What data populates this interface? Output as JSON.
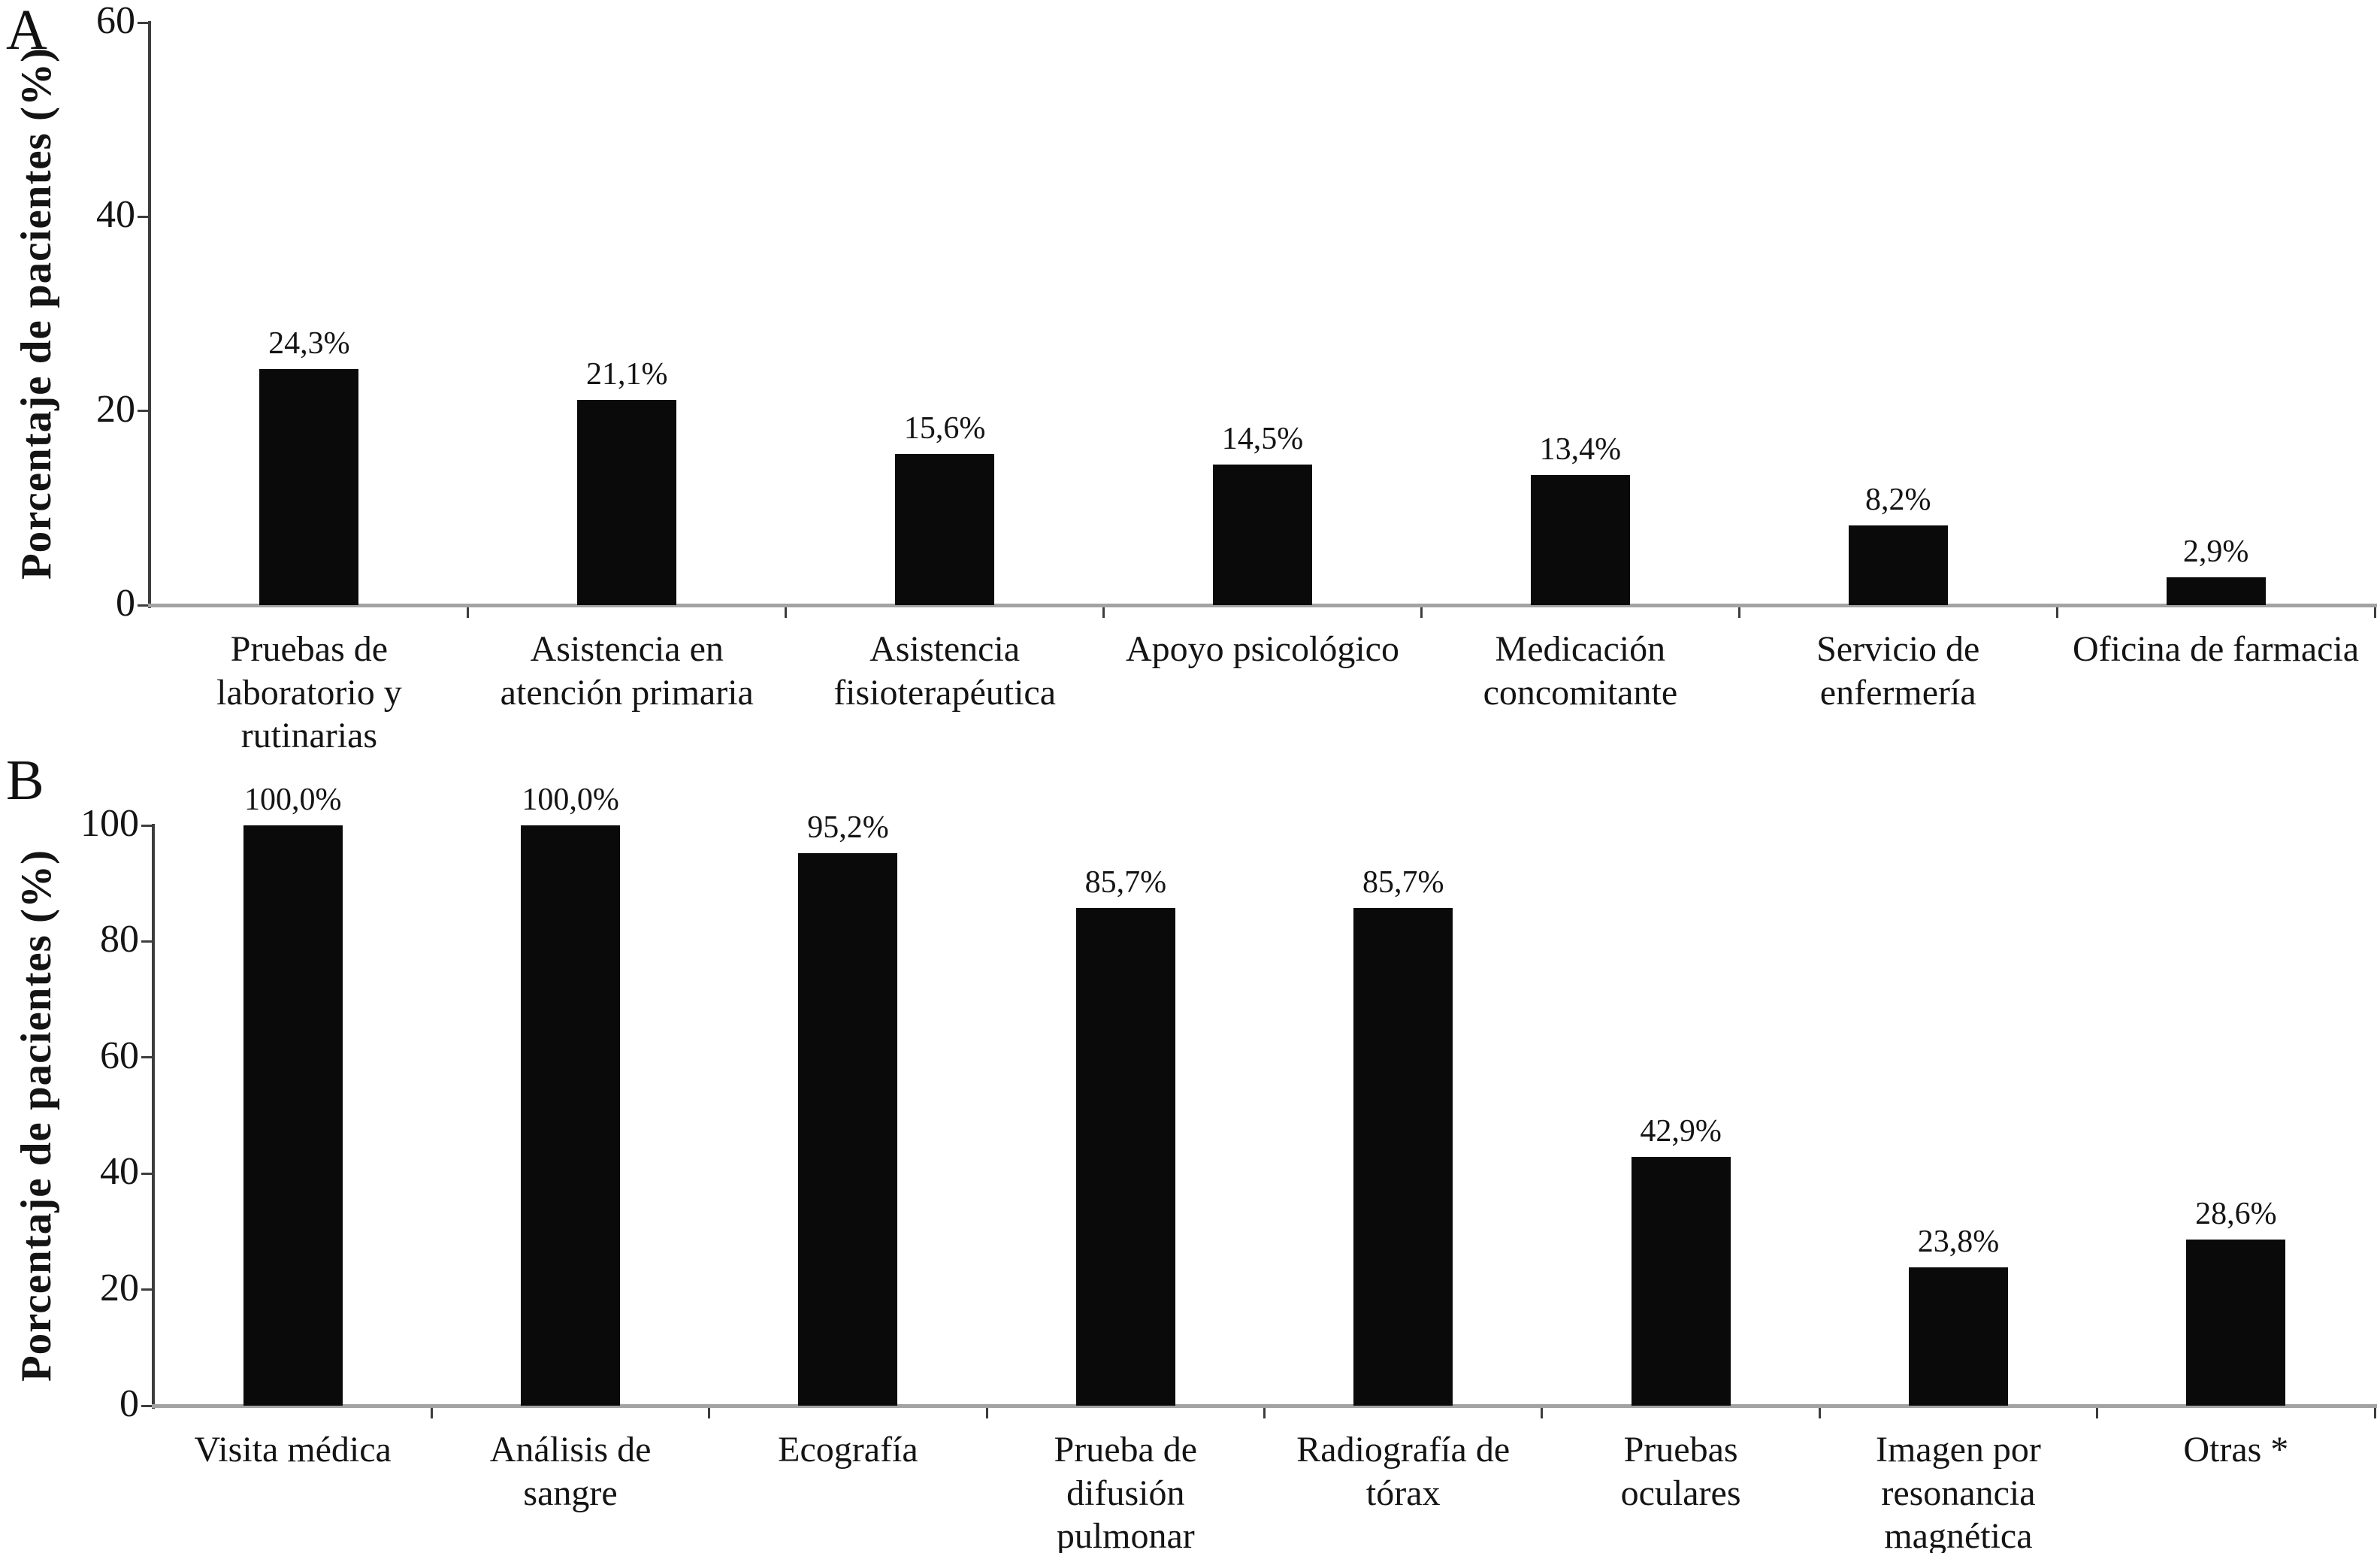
{
  "figure": {
    "background_color": "#ffffff",
    "bar_color": "#0a0a0a",
    "y_axis_line_color": "#3d3d3d",
    "x_axis_line_color": "#a3a3a3",
    "text_color": "#141414"
  },
  "chart_data": [
    {
      "type": "bar",
      "panel_label": "A",
      "title": "",
      "xlabel": "",
      "ylabel": "Porcentaje de pacientes (%)",
      "ylim": [
        0,
        60
      ],
      "yticks": [
        0,
        20,
        40,
        60
      ],
      "grid": false,
      "legend": false,
      "bar_color": "#0a0a0a",
      "categories": [
        "Pruebas de laboratorio y rutinarias",
        "Asistencia en atención primaria",
        "Asistencia fisioterapéutica",
        "Apoyo psicológico",
        "Medicación concomitante",
        "Servicio de enfermería",
        "Oficina de farmacia"
      ],
      "category_lines": [
        [
          "Pruebas de",
          "laboratorio y",
          "rutinarias"
        ],
        [
          "Asistencia en",
          "atención primaria"
        ],
        [
          "Asistencia",
          "fisioterapéutica"
        ],
        [
          "Apoyo psicológico"
        ],
        [
          "Medicación",
          "concomitante"
        ],
        [
          "Servicio de",
          "enfermería"
        ],
        [
          "Oficina de farmacia"
        ]
      ],
      "values": [
        24.3,
        21.1,
        15.6,
        14.5,
        13.4,
        8.2,
        2.9
      ],
      "value_labels": [
        "24,3%",
        "21,1%",
        "15,6%",
        "14,5%",
        "13,4%",
        "8,2%",
        "2,9%"
      ]
    },
    {
      "type": "bar",
      "panel_label": "B",
      "title": "",
      "xlabel": "",
      "ylabel": "Porcentaje de pacientes (%)",
      "ylim": [
        0,
        100
      ],
      "yticks": [
        0,
        20,
        40,
        60,
        80,
        100
      ],
      "grid": false,
      "legend": false,
      "bar_color": "#0a0a0a",
      "categories": [
        "Visita médica",
        "Análisis de sangre",
        "Ecografía",
        "Prueba de difusión pulmonar",
        "Radiografía de tórax",
        "Pruebas oculares",
        "Imagen por resonancia magnética",
        "Otras *"
      ],
      "category_lines": [
        [
          "Visita médica"
        ],
        [
          "Análisis de",
          "sangre"
        ],
        [
          "Ecografía"
        ],
        [
          "Prueba de",
          "difusión",
          "pulmonar"
        ],
        [
          "Radiografía de",
          "tórax"
        ],
        [
          "Pruebas",
          "oculares"
        ],
        [
          "Imagen por",
          "resonancia",
          "magnética"
        ],
        [
          "Otras *"
        ]
      ],
      "values": [
        100.0,
        100.0,
        95.2,
        85.7,
        85.7,
        42.9,
        23.8,
        28.6
      ],
      "value_labels": [
        "100,0%",
        "100,0%",
        "95,2%",
        "85,7%",
        "85,7%",
        "42,9%",
        "23,8%",
        "28,6%"
      ]
    }
  ]
}
